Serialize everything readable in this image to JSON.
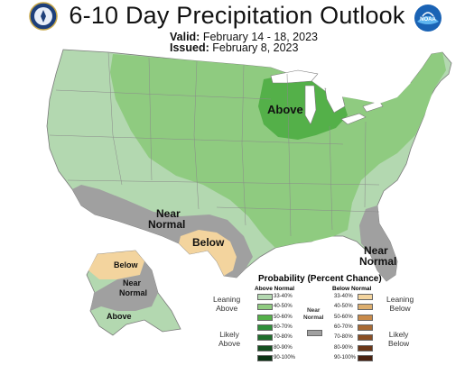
{
  "header": {
    "title": "6-10 Day Precipitation Outlook",
    "valid_label": "Valid:",
    "valid_value": "February 14 - 18, 2023",
    "issued_label": "Issued:",
    "issued_value": "February 8, 2023"
  },
  "logos": {
    "left": "doc-seal-icon",
    "right": "noaa-logo-icon",
    "noaa_text": "NOAA"
  },
  "map_labels": {
    "above_great_lakes": "Above",
    "near_normal_southwest": [
      "Near",
      "Normal"
    ],
    "below_texas": "Below",
    "near_normal_southeast": [
      "Near",
      "Normal"
    ],
    "below_alaska": "Below",
    "near_normal_alaska": [
      "Near",
      "Normal"
    ],
    "above_alaska": "Above"
  },
  "colors": {
    "ocean": "#ffffff",
    "land_outside": "#ffffff",
    "above_33_40": "#b3d8b0",
    "above_40_50": "#8fcb80",
    "above_50_60": "#54b049",
    "near_normal": "#a0a0a0",
    "below_33_40": "#f3d49e"
  },
  "legend": {
    "title": "Probability (Percent Chance)",
    "above_header": "Above Normal",
    "below_header": "Below Normal",
    "above_rows": [
      {
        "label": "33-40%",
        "color": "#b3d8b0"
      },
      {
        "label": "40-50%",
        "color": "#8fcb80"
      },
      {
        "label": "50-60%",
        "color": "#54b049"
      },
      {
        "label": "60-70%",
        "color": "#2f8f3a"
      },
      {
        "label": "70-80%",
        "color": "#1f6e2c"
      },
      {
        "label": "80-90%",
        "color": "#155020"
      },
      {
        "label": "90-100%",
        "color": "#0b3314"
      }
    ],
    "below_rows": [
      {
        "label": "33-40%",
        "color": "#f3d49e"
      },
      {
        "label": "40-50%",
        "color": "#dcae6e"
      },
      {
        "label": "50-60%",
        "color": "#c88a4a"
      },
      {
        "label": "60-70%",
        "color": "#a86a34"
      },
      {
        "label": "70-80%",
        "color": "#8a4f24"
      },
      {
        "label": "80-90%",
        "color": "#6b3718"
      },
      {
        "label": "90-100%",
        "color": "#4a2210"
      }
    ],
    "near_normal": {
      "label": [
        "Near",
        "Normal"
      ],
      "color": "#a0a0a0"
    },
    "groups": {
      "leaning_above": [
        "Leaning",
        "Above"
      ],
      "likely_above": [
        "Likely",
        "Above"
      ],
      "leaning_below": [
        "Leaning",
        "Below"
      ],
      "likely_below": [
        "Likely",
        "Below"
      ]
    }
  }
}
